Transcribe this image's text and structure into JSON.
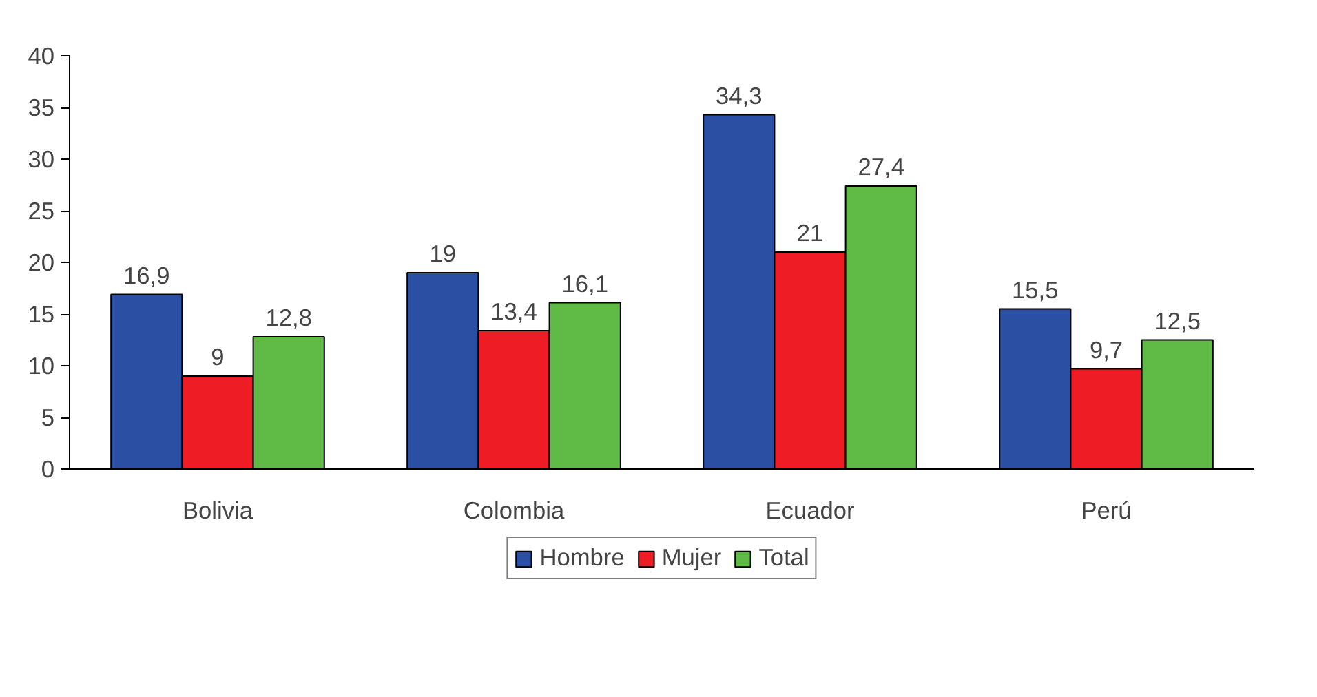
{
  "chart_data": {
    "type": "bar",
    "categories": [
      "Bolivia",
      "Colombia",
      "Ecuador",
      "Perú"
    ],
    "series": [
      {
        "name": "Hombre",
        "color": "#2a4fa3",
        "values": [
          16.9,
          19,
          34.3,
          15.5
        ],
        "value_labels": [
          "16,9",
          "19",
          "34,3",
          "15,5"
        ]
      },
      {
        "name": "Mujer",
        "color": "#ee1c25",
        "values": [
          9,
          13.4,
          21,
          9.7
        ],
        "value_labels": [
          "9",
          "13,4",
          "21",
          "9,7"
        ]
      },
      {
        "name": "Total",
        "color": "#5fba46",
        "values": [
          12.8,
          16.1,
          27.4,
          12.5
        ],
        "value_labels": [
          "12,8",
          "16,1",
          "27,4",
          "12,5"
        ]
      }
    ],
    "ylim": [
      0,
      40
    ],
    "yticks": [
      0,
      5,
      10,
      15,
      20,
      25,
      30,
      35,
      40
    ],
    "grid": false,
    "legend": "bottom"
  }
}
